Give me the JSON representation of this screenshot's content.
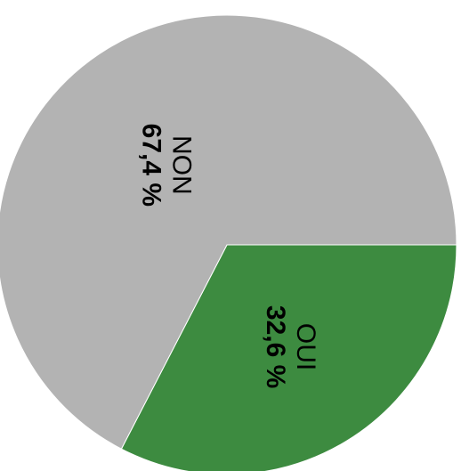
{
  "chart_data": {
    "type": "pie",
    "categories": [
      "OUI",
      "NON"
    ],
    "values": [
      32.6,
      67.4
    ],
    "value_labels": [
      "32,6 %",
      "67,4 %"
    ],
    "colors": [
      "#3d8b40",
      "#b3b3b3"
    ]
  }
}
